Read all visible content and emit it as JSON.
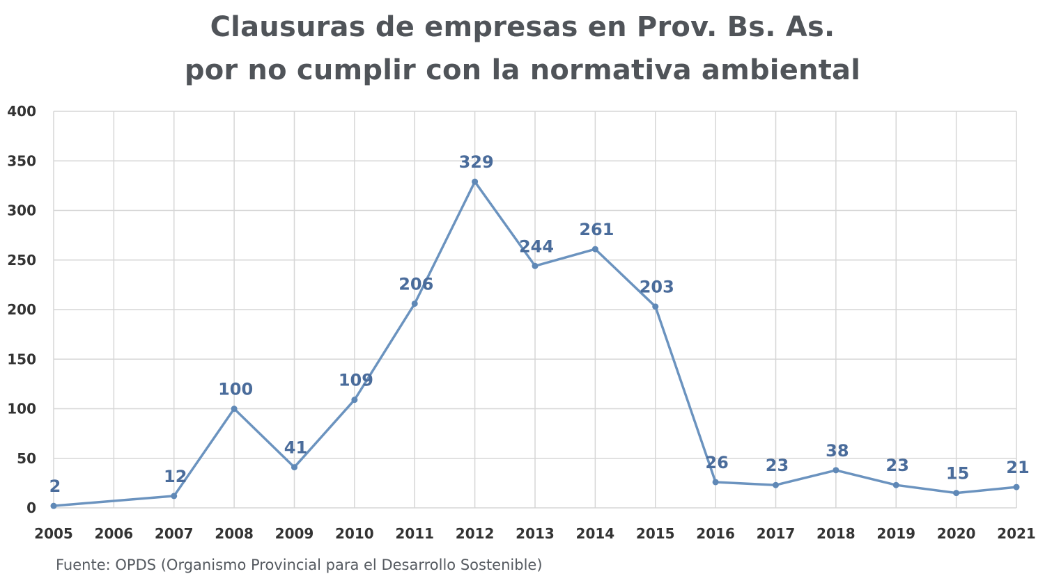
{
  "title_lines": [
    "Clausuras de empresas en Prov. Bs. As.",
    "por no cumplir con la normativa ambiental"
  ],
  "source": "Fuente: OPDS (Organismo Provincial para el Desarrollo Sostenible)",
  "colors": {
    "line": "#6b93bf",
    "marker": "#5f88b6",
    "data_label": "#4a6c9b",
    "grid": "#d6d6d6",
    "axis_text": "#333333",
    "title": "#505459"
  },
  "chart_data": {
    "type": "line",
    "title": "Clausuras de empresas en Prov. Bs. As. por no cumplir con la normativa ambiental",
    "xlabel": "",
    "ylabel": "",
    "ylim": [
      0,
      400
    ],
    "yticks": [
      0,
      50,
      100,
      150,
      200,
      250,
      300,
      350,
      400
    ],
    "categories": [
      "2005",
      "2006",
      "2007",
      "2008",
      "2009",
      "2010",
      "2011",
      "2012",
      "2013",
      "2014",
      "2015",
      "2016",
      "2017",
      "2018",
      "2019",
      "2020",
      "2021"
    ],
    "points": [
      {
        "x": "2005",
        "y": 2
      },
      {
        "x": "2007",
        "y": 12
      },
      {
        "x": "2008",
        "y": 100
      },
      {
        "x": "2009",
        "y": 41
      },
      {
        "x": "2010",
        "y": 109
      },
      {
        "x": "2011",
        "y": 206
      },
      {
        "x": "2012",
        "y": 329
      },
      {
        "x": "2013",
        "y": 244
      },
      {
        "x": "2014",
        "y": 261
      },
      {
        "x": "2015",
        "y": 203
      },
      {
        "x": "2016",
        "y": 26
      },
      {
        "x": "2017",
        "y": 23
      },
      {
        "x": "2018",
        "y": 38
      },
      {
        "x": "2019",
        "y": 23
      },
      {
        "x": "2020",
        "y": 15
      },
      {
        "x": "2021",
        "y": 21
      }
    ],
    "grid": true,
    "legend": "none"
  }
}
